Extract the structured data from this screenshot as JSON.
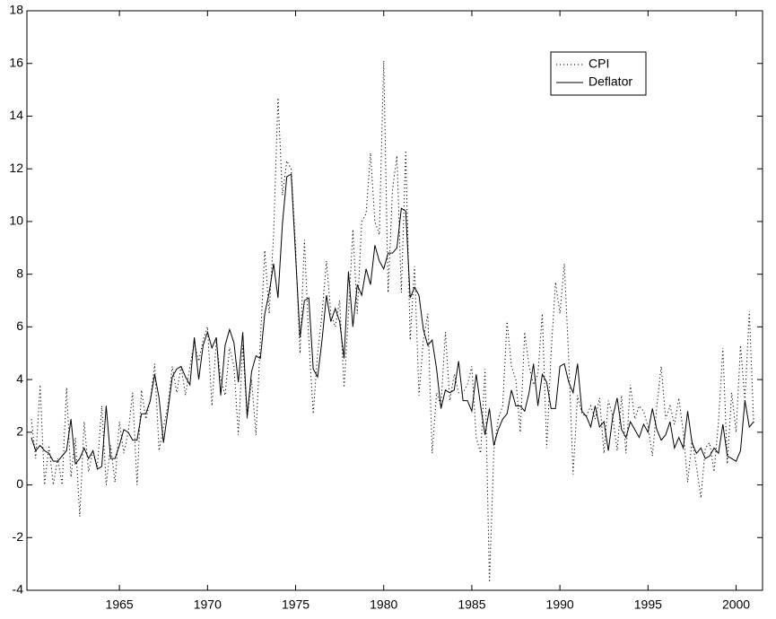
{
  "chart_data": {
    "type": "line",
    "x": [
      1960,
      1960.25,
      1960.5,
      1960.75,
      1961,
      1961.25,
      1961.5,
      1961.75,
      1962,
      1962.25,
      1962.5,
      1962.75,
      1963,
      1963.25,
      1963.5,
      1963.75,
      1964,
      1964.25,
      1964.5,
      1964.75,
      1965,
      1965.25,
      1965.5,
      1965.75,
      1966,
      1966.25,
      1966.5,
      1966.75,
      1967,
      1967.25,
      1967.5,
      1967.75,
      1968,
      1968.25,
      1968.5,
      1968.75,
      1969,
      1969.25,
      1969.5,
      1969.75,
      1970,
      1970.25,
      1970.5,
      1970.75,
      1971,
      1971.25,
      1971.5,
      1971.75,
      1972,
      1972.25,
      1972.5,
      1972.75,
      1973,
      1973.25,
      1973.5,
      1973.75,
      1974,
      1974.25,
      1974.5,
      1974.75,
      1975,
      1975.25,
      1975.5,
      1975.75,
      1976,
      1976.25,
      1976.5,
      1976.75,
      1977,
      1977.25,
      1977.5,
      1977.75,
      1978,
      1978.25,
      1978.5,
      1978.75,
      1979,
      1979.25,
      1979.5,
      1979.75,
      1980,
      1980.25,
      1980.5,
      1980.75,
      1981,
      1981.25,
      1981.5,
      1981.75,
      1982,
      1982.25,
      1982.5,
      1982.75,
      1983,
      1983.25,
      1983.5,
      1983.75,
      1984,
      1984.25,
      1984.5,
      1984.75,
      1985,
      1985.25,
      1985.5,
      1985.75,
      1986,
      1986.25,
      1986.5,
      1986.75,
      1987,
      1987.25,
      1987.5,
      1987.75,
      1988,
      1988.25,
      1988.5,
      1988.75,
      1989,
      1989.25,
      1989.5,
      1989.75,
      1990,
      1990.25,
      1990.5,
      1990.75,
      1991,
      1991.25,
      1991.5,
      1991.75,
      1992,
      1992.25,
      1992.5,
      1992.75,
      1993,
      1993.25,
      1993.5,
      1993.75,
      1994,
      1994.25,
      1994.5,
      1994.75,
      1995,
      1995.25,
      1995.5,
      1995.75,
      1996,
      1996.25,
      1996.5,
      1996.75,
      1997,
      1997.25,
      1997.5,
      1997.75,
      1998,
      1998.25,
      1998.5,
      1998.75,
      1999,
      1999.25,
      1999.5,
      1999.75,
      2000,
      2000.25,
      2000.5,
      2000.75,
      2001
    ],
    "series": [
      {
        "name": "CPI",
        "color": "#000000",
        "linestyle": "dotted",
        "values": [
          2.5,
          1.0,
          3.8,
          0.0,
          1.5,
          0.0,
          1.0,
          0.0,
          3.7,
          0.3,
          1.8,
          -1.2,
          2.4,
          0.5,
          1.3,
          0.7,
          3.0,
          0.0,
          1.5,
          0.1,
          2.4,
          1.2,
          2.0,
          3.5,
          0.0,
          3.6,
          2.5,
          3.2,
          4.6,
          1.3,
          2.2,
          3.0,
          4.5,
          3.5,
          4.5,
          3.4,
          4.5,
          5.4,
          4.7,
          5.5,
          6.0,
          3.0,
          5.5,
          4.0,
          3.4,
          5.2,
          4.5,
          1.9,
          5.3,
          2.5,
          4.0,
          1.9,
          5.5,
          8.9,
          6.5,
          9.5,
          14.7,
          11.0,
          12.3,
          12.0,
          9.0,
          5.0,
          9.3,
          5.5,
          2.7,
          5.0,
          6.5,
          8.5,
          6.5,
          6.0,
          7.0,
          3.7,
          6.5,
          9.7,
          6.5,
          10.0,
          10.3,
          12.6,
          10.0,
          9.5,
          16.1,
          7.3,
          11.2,
          12.5,
          7.3,
          12.7,
          5.5,
          8.3,
          3.4,
          5.5,
          6.5,
          1.2,
          3.5,
          3.0,
          5.8,
          3.2,
          4.2,
          3.5,
          3.5,
          3.8,
          4.5,
          1.8,
          1.2,
          4.4,
          -3.7,
          1.3,
          2.5,
          3.0,
          6.2,
          4.5,
          4.0,
          2.0,
          5.8,
          4.5,
          3.8,
          4.2,
          6.5,
          1.4,
          5.0,
          7.7,
          6.5,
          8.4,
          4.8,
          0.4,
          3.4,
          2.7,
          2.6,
          3.0,
          2.5,
          3.3,
          1.2,
          3.2,
          2.6,
          1.3,
          3.4,
          1.2,
          3.8,
          2.5,
          3.0,
          2.8,
          2.2,
          1.1,
          3.0,
          4.5,
          2.5,
          3.0,
          2.3,
          3.3,
          2.0,
          0.1,
          1.7,
          0.7,
          -0.5,
          1.4,
          1.6,
          0.5,
          2.4,
          5.2,
          0.8,
          3.5,
          2.0,
          5.3,
          3.2,
          6.6,
          2.3
        ]
      },
      {
        "name": "Deflator",
        "color": "#000000",
        "linestyle": "solid",
        "values": [
          1.8,
          1.3,
          1.5,
          1.3,
          1.2,
          0.9,
          0.9,
          1.1,
          1.3,
          2.5,
          0.8,
          1.0,
          1.4,
          1.0,
          1.3,
          0.6,
          0.7,
          3.0,
          1.0,
          1.0,
          1.5,
          2.1,
          2.0,
          1.7,
          1.7,
          2.7,
          2.7,
          3.2,
          4.2,
          3.3,
          1.6,
          2.8,
          4.1,
          4.4,
          4.5,
          4.1,
          3.8,
          5.6,
          4.0,
          5.3,
          5.8,
          5.2,
          5.6,
          3.4,
          5.3,
          5.9,
          5.4,
          3.9,
          5.8,
          2.6,
          4.3,
          4.9,
          4.8,
          6.5,
          7.3,
          8.4,
          7.1,
          9.9,
          11.7,
          11.8,
          8.7,
          5.6,
          7.0,
          7.1,
          4.4,
          4.1,
          5.5,
          7.2,
          6.2,
          6.7,
          6.2,
          4.8,
          8.1,
          6.0,
          7.6,
          7.2,
          8.2,
          7.6,
          9.1,
          8.5,
          8.2,
          8.8,
          8.8,
          9.0,
          10.5,
          10.4,
          7.1,
          7.5,
          7.2,
          5.9,
          5.3,
          5.5,
          4.4,
          2.9,
          3.6,
          3.5,
          3.6,
          4.7,
          3.2,
          3.2,
          2.8,
          4.2,
          3.0,
          1.9,
          2.9,
          1.5,
          2.1,
          2.5,
          2.7,
          3.6,
          3.0,
          3.0,
          2.8,
          3.5,
          4.6,
          3.0,
          4.2,
          3.9,
          2.9,
          2.9,
          4.5,
          4.6,
          3.9,
          3.5,
          4.6,
          2.8,
          2.6,
          2.2,
          3.0,
          2.2,
          2.4,
          1.3,
          2.6,
          3.3,
          2.1,
          1.8,
          2.4,
          2.1,
          1.8,
          2.3,
          2.0,
          2.9,
          2.1,
          1.7,
          1.9,
          2.4,
          1.4,
          1.8,
          1.4,
          2.8,
          1.6,
          1.2,
          1.4,
          1.0,
          1.1,
          1.4,
          1.2,
          2.3,
          1.1,
          1.0,
          0.9,
          1.3,
          3.2,
          2.2,
          2.4
        ]
      }
    ],
    "xlim": [
      1959.75,
      2001.5
    ],
    "xticks": [
      1965,
      1970,
      1975,
      1980,
      1985,
      1990,
      1995,
      2000
    ],
    "ylim": [
      -4,
      18
    ],
    "yticks": [
      -4,
      -2,
      0,
      2,
      4,
      6,
      8,
      10,
      12,
      14,
      16,
      18
    ],
    "grid": false,
    "legend": "upper right"
  }
}
